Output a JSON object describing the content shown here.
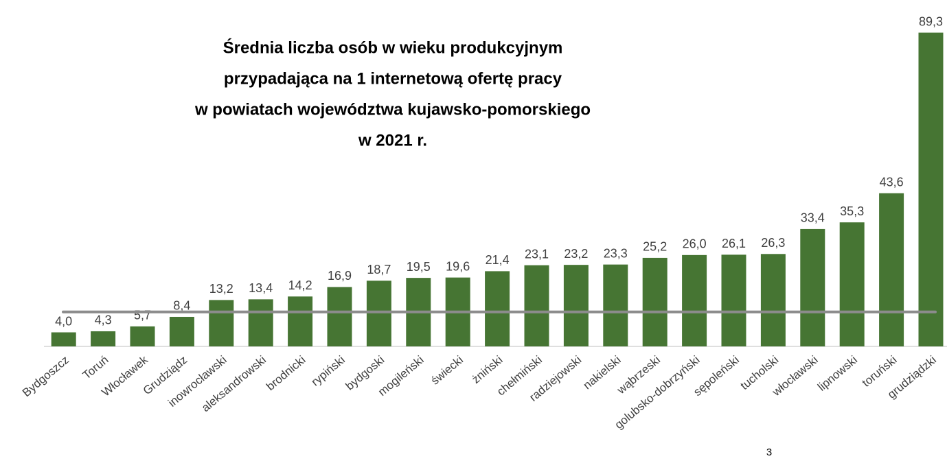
{
  "chart_data": {
    "type": "bar",
    "title": [
      "Średnia liczba osób w wieku produkcyjnym",
      "przypadająca na 1 internetową ofertę pracy",
      "w powiatach województwa kujawsko-pomorskiego",
      "w 2021 r."
    ],
    "categories": [
      "Bydgoszcz",
      "Toruń",
      "Włocławek",
      "Grudziądz",
      "inowrocławski",
      "aleksandrowski",
      "brodnicki",
      "rypiński",
      "bydgoski",
      "mogileński",
      "świecki",
      "żniński",
      "chełmiński",
      "radziejowski",
      "nakielski",
      "wąbrzeski",
      "golubsko-dobrzyński",
      "sępoleński",
      "tucholski",
      "włocławski",
      "lipnowski",
      "toruński",
      "grudziądzki"
    ],
    "values": [
      4.0,
      4.3,
      5.7,
      8.4,
      13.2,
      13.4,
      14.2,
      16.9,
      18.7,
      19.5,
      19.6,
      21.4,
      23.1,
      23.2,
      23.3,
      25.2,
      26.0,
      26.1,
      26.3,
      33.4,
      35.3,
      43.6,
      89.3
    ],
    "value_labels": [
      "4,0",
      "4,3",
      "5,7",
      "8,4",
      "13,2",
      "13,4",
      "14,2",
      "16,9",
      "18,7",
      "19,5",
      "19,6",
      "21,4",
      "23,1",
      "23,2",
      "23,3",
      "25,2",
      "26,0",
      "26,1",
      "26,3",
      "33,4",
      "35,3",
      "43,6",
      "89,3"
    ],
    "color": "#467533",
    "ylim": [
      0,
      90
    ],
    "reference_line": {
      "value": 9.8,
      "color": "#8c8c8c"
    }
  },
  "page_number": "3"
}
